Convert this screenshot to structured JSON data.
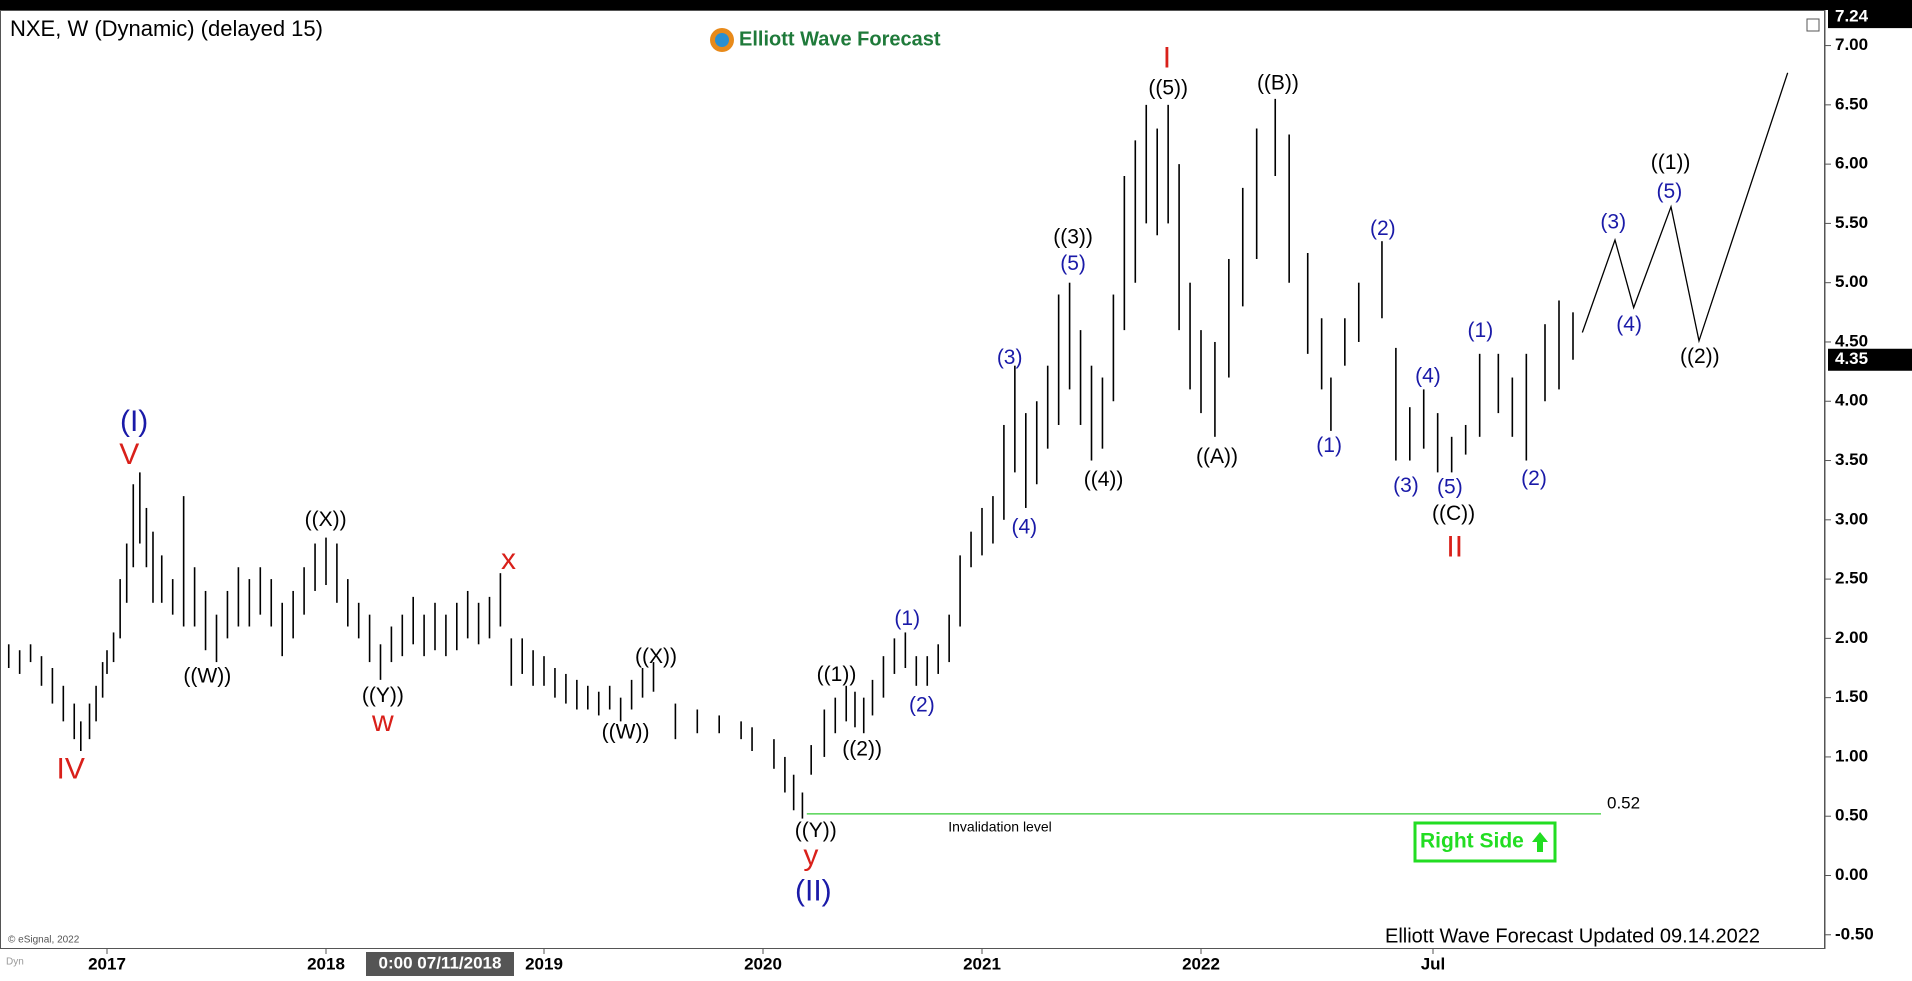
{
  "chart_data": {
    "type": "ohlc",
    "title": "NXE, W (Dynamic) (delayed 15)",
    "logo": "Elliott Wave Forecast",
    "color": "#000000",
    "x": [
      2016.55,
      2016.6,
      2016.65,
      2016.7,
      2016.75,
      2016.8,
      2016.85,
      2016.88,
      2016.92,
      2016.95,
      2016.98,
      2017.0,
      2017.03,
      2017.06,
      2017.09,
      2017.12,
      2017.15,
      2017.18,
      2017.21,
      2017.25,
      2017.3,
      2017.35,
      2017.4,
      2017.45,
      2017.5,
      2017.55,
      2017.6,
      2017.65,
      2017.7,
      2017.75,
      2017.8,
      2017.85,
      2017.9,
      2017.95,
      2018.0,
      2018.05,
      2018.1,
      2018.15,
      2018.2,
      2018.25,
      2018.3,
      2018.35,
      2018.4,
      2018.45,
      2018.5,
      2018.55,
      2018.6,
      2018.65,
      2018.7,
      2018.75,
      2018.8,
      2018.85,
      2018.9,
      2018.95,
      2019.0,
      2019.05,
      2019.1,
      2019.15,
      2019.2,
      2019.25,
      2019.3,
      2019.35,
      2019.4,
      2019.45,
      2019.5,
      2019.6,
      2019.7,
      2019.8,
      2019.9,
      2019.95,
      2020.05,
      2020.1,
      2020.14,
      2020.18,
      2020.22,
      2020.28,
      2020.33,
      2020.38,
      2020.42,
      2020.46,
      2020.5,
      2020.55,
      2020.6,
      2020.65,
      2020.7,
      2020.75,
      2020.8,
      2020.85,
      2020.9,
      2020.95,
      2021.0,
      2021.05,
      2021.1,
      2021.15,
      2021.2,
      2021.25,
      2021.3,
      2021.35,
      2021.4,
      2021.45,
      2021.5,
      2021.55,
      2021.6,
      2021.65,
      2021.7,
      2021.75,
      2021.8,
      2021.85,
      2021.9,
      2021.95,
      2022.0,
      2022.03,
      2022.06,
      2022.09,
      2022.12,
      2022.16,
      2022.19,
      2022.23,
      2022.26,
      2022.28,
      2022.31,
      2022.34,
      2022.39,
      2022.42,
      2022.45,
      2022.48,
      2022.51,
      2022.54,
      2022.57,
      2022.6,
      2022.64,
      2022.67,
      2022.7,
      2022.74,
      2022.77,
      2022.8
    ],
    "high": [
      1.95,
      1.9,
      1.95,
      1.85,
      1.75,
      1.6,
      1.45,
      1.3,
      1.45,
      1.6,
      1.8,
      1.9,
      2.05,
      2.5,
      2.8,
      3.3,
      3.4,
      3.1,
      2.9,
      2.7,
      2.5,
      3.2,
      2.6,
      2.4,
      2.2,
      2.4,
      2.6,
      2.5,
      2.6,
      2.5,
      2.3,
      2.4,
      2.6,
      2.8,
      2.85,
      2.8,
      2.5,
      2.3,
      2.2,
      1.95,
      2.1,
      2.2,
      2.35,
      2.2,
      2.3,
      2.2,
      2.3,
      2.4,
      2.3,
      2.35,
      2.55,
      2.0,
      2.0,
      1.9,
      1.85,
      1.75,
      1.7,
      1.65,
      1.6,
      1.55,
      1.6,
      1.5,
      1.65,
      1.75,
      1.8,
      1.45,
      1.4,
      1.35,
      1.3,
      1.25,
      1.15,
      1.0,
      0.85,
      0.7,
      1.1,
      1.4,
      1.5,
      1.6,
      1.55,
      1.5,
      1.65,
      1.85,
      2.0,
      2.05,
      1.85,
      1.85,
      1.95,
      2.2,
      2.7,
      2.9,
      3.1,
      3.2,
      3.8,
      4.3,
      3.9,
      4.0,
      4.3,
      4.9,
      5.0,
      4.6,
      4.3,
      4.2,
      4.9,
      5.9,
      6.2,
      6.5,
      6.3,
      6.5,
      6.0,
      5.0,
      4.6,
      4.5,
      5.2,
      5.8,
      6.3,
      6.55,
      6.25,
      5.25,
      4.7,
      4.2,
      4.7,
      5.0,
      5.35,
      4.45,
      3.95,
      4.1,
      3.9,
      3.7,
      3.8,
      4.4,
      4.4,
      4.2,
      4.4,
      4.65,
      4.85,
      4.75
    ],
    "low": [
      1.75,
      1.7,
      1.8,
      1.6,
      1.45,
      1.3,
      1.15,
      1.05,
      1.15,
      1.3,
      1.5,
      1.7,
      1.8,
      2.0,
      2.3,
      2.6,
      2.8,
      2.6,
      2.3,
      2.3,
      2.2,
      2.1,
      2.1,
      1.9,
      1.8,
      2.0,
      2.1,
      2.1,
      2.2,
      2.1,
      1.85,
      2.0,
      2.2,
      2.4,
      2.45,
      2.3,
      2.1,
      2.0,
      1.8,
      1.65,
      1.8,
      1.85,
      1.95,
      1.85,
      1.9,
      1.85,
      1.9,
      2.0,
      1.95,
      2.0,
      2.1,
      1.6,
      1.7,
      1.6,
      1.6,
      1.5,
      1.45,
      1.4,
      1.4,
      1.35,
      1.4,
      1.3,
      1.4,
      1.5,
      1.55,
      1.15,
      1.2,
      1.2,
      1.15,
      1.05,
      0.9,
      0.7,
      0.55,
      0.48,
      0.85,
      1.0,
      1.2,
      1.3,
      1.25,
      1.2,
      1.35,
      1.5,
      1.7,
      1.75,
      1.6,
      1.6,
      1.7,
      1.8,
      2.1,
      2.6,
      2.7,
      2.8,
      3.0,
      3.4,
      3.1,
      3.3,
      3.6,
      3.8,
      4.1,
      3.8,
      3.5,
      3.6,
      4.0,
      4.6,
      5.0,
      5.5,
      5.4,
      5.5,
      4.6,
      4.1,
      3.9,
      3.7,
      4.2,
      4.8,
      5.2,
      5.9,
      5.0,
      4.4,
      4.1,
      3.75,
      4.3,
      4.5,
      4.7,
      3.5,
      3.5,
      3.6,
      3.4,
      3.4,
      3.55,
      3.7,
      3.9,
      3.7,
      3.5,
      4.0,
      4.1,
      4.35
    ],
    "projection": {
      "x": [
        2022.82,
        2022.89,
        2022.93,
        2023.01,
        2023.07,
        2023.26
      ],
      "values": [
        4.58,
        5.36,
        4.79,
        5.64,
        4.51,
        6.77
      ],
      "color": "#000000"
    },
    "invalidation": {
      "value": 0.52,
      "x": [
        2020.2,
        2022.86
      ],
      "label": "Invalidation level",
      "color": "#33cc33"
    },
    "price_labels": [
      7.24,
      4.35
    ],
    "xlim": [
      2016.51,
      2023.34
    ],
    "xticks": [
      2017,
      2018,
      2019,
      2020,
      2021,
      2022,
      {
        "value": 2022.5,
        "label": "Jul"
      }
    ],
    "ylim": [
      -0.62,
      7.3
    ],
    "yticks": [
      {
        "value": -0.5,
        "label": "-0.50"
      },
      {
        "value": 0,
        "label": "0.00"
      },
      {
        "value": 0.5,
        "label": "0.50"
      },
      {
        "value": 1,
        "label": "1.00"
      },
      {
        "value": 1.5,
        "label": "1.50"
      },
      {
        "value": 2,
        "label": "2.00"
      },
      {
        "value": 2.5,
        "label": "2.50"
      },
      {
        "value": 3,
        "label": "3.00"
      },
      {
        "value": 3.5,
        "label": "3.50"
      },
      {
        "value": 4,
        "label": "4.00"
      },
      {
        "value": 4.5,
        "label": "4.50"
      },
      {
        "value": 5,
        "label": "5.00"
      },
      {
        "value": 5.5,
        "label": "5.50"
      },
      {
        "value": 6,
        "label": "6.00"
      },
      {
        "value": 6.5,
        "label": "6.50"
      },
      {
        "value": 7,
        "label": "7.00"
      }
    ],
    "annotations": [
      {
        "text": "(I)",
        "color": "#1a1aa8"
      },
      {
        "text": "V",
        "color": "#d9201a"
      },
      {
        "text": "IV",
        "color": "#d9201a"
      },
      {
        "text": "((W))",
        "color": "#000000"
      },
      {
        "text": "((X))",
        "color": "#000000"
      },
      {
        "text": "((Y))",
        "color": "#000000"
      },
      {
        "text": "w",
        "color": "#d9201a"
      },
      {
        "text": "x",
        "color": "#d9201a"
      },
      {
        "text": "((W))",
        "color": "#000000"
      },
      {
        "text": "((X))",
        "color": "#000000"
      },
      {
        "text": "((Y))",
        "color": "#000000"
      },
      {
        "text": "y",
        "color": "#d9201a"
      },
      {
        "text": "(II)",
        "color": "#1a1aa8"
      },
      {
        "text": "((1))",
        "color": "#000000"
      },
      {
        "text": "((2))",
        "color": "#000000"
      },
      {
        "text": "(1)",
        "color": "#1a1aa8"
      },
      {
        "text": "(2)",
        "color": "#1a1aa8"
      },
      {
        "text": "(3)",
        "color": "#1a1aa8"
      },
      {
        "text": "(4)",
        "color": "#1a1aa8"
      },
      {
        "text": "((3))",
        "color": "#000000"
      },
      {
        "text": "(5)",
        "color": "#1a1aa8"
      },
      {
        "text": "((4))",
        "color": "#000000"
      },
      {
        "text": "I",
        "color": "#d9201a"
      },
      {
        "text": "((5))",
        "color": "#000000"
      },
      {
        "text": "((A))",
        "color": "#000000"
      },
      {
        "text": "((B))",
        "color": "#000000"
      },
      {
        "text": "(1)",
        "color": "#1a1aa8"
      },
      {
        "text": "(2)",
        "color": "#1a1aa8"
      },
      {
        "text": "(3)",
        "color": "#1a1aa8"
      },
      {
        "text": "(4)",
        "color": "#1a1aa8"
      },
      {
        "text": "(5)",
        "color": "#1a1aa8"
      },
      {
        "text": "((C))",
        "color": "#000000"
      },
      {
        "text": "II",
        "color": "#d9201a"
      },
      {
        "text": "(1)",
        "color": "#1a1aa8"
      },
      {
        "text": "(2)",
        "color": "#1a1aa8"
      },
      {
        "text": "(3)",
        "color": "#1a1aa8"
      },
      {
        "text": "(4)",
        "color": "#1a1aa8"
      },
      {
        "text": "((1))",
        "color": "#000000"
      },
      {
        "text": "(5)",
        "color": "#1a1aa8"
      },
      {
        "text": "((2))",
        "color": "#000000"
      }
    ],
    "badge": "Right Side",
    "footer": "Elliott Wave Forecast Updated 09.14.2022",
    "copyright": "© eSignal, 2022",
    "cursor_label": "0:00 07/11/2018",
    "corner_label": "Dyn"
  }
}
